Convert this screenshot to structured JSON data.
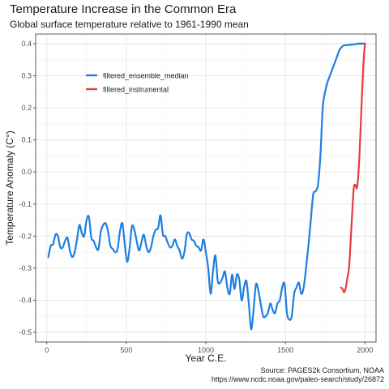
{
  "header": {
    "title": "Temperature Increase in the Common Era",
    "subtitle": "Global surface temperature relative to 1961-1990 mean"
  },
  "caption": {
    "line1": "Source: PAGES2k Consortium, NOAA",
    "line2": "https://www.ncdc.noaa.gov/paleo-search/study/26872"
  },
  "chart_data": {
    "type": "line",
    "xlabel": "Year C.E.",
    "ylabel": "Temperature Anomaly (C°)",
    "xlim": [
      -70,
      2070
    ],
    "ylim": [
      -0.53,
      0.43
    ],
    "xticks": [
      0,
      500,
      1000,
      1500,
      2000
    ],
    "yticks": [
      -0.5,
      -0.4,
      -0.3,
      -0.2,
      -0.1,
      0.0,
      0.1,
      0.2,
      0.3,
      0.4
    ],
    "ytick_labels": [
      "-0.5",
      "-0.4",
      "-0.3",
      "-0.2",
      "-0.1",
      "0.0",
      "0.1",
      "0.2",
      "0.3",
      "0.4"
    ],
    "grid": true,
    "legend_position": "top-left",
    "series": [
      {
        "name": "filtered_ensemble_median",
        "color": "#1e7fe0",
        "x": [
          10,
          25,
          40,
          55,
          70,
          85,
          100,
          115,
          130,
          145,
          160,
          175,
          190,
          205,
          220,
          235,
          250,
          265,
          280,
          295,
          310,
          325,
          340,
          355,
          370,
          385,
          400,
          415,
          430,
          445,
          460,
          475,
          490,
          505,
          520,
          535,
          550,
          565,
          580,
          595,
          610,
          625,
          640,
          655,
          670,
          685,
          700,
          715,
          730,
          745,
          760,
          775,
          790,
          805,
          820,
          835,
          850,
          865,
          880,
          895,
          910,
          925,
          940,
          955,
          970,
          985,
          1000,
          1015,
          1030,
          1045,
          1060,
          1075,
          1090,
          1105,
          1120,
          1135,
          1150,
          1165,
          1180,
          1195,
          1210,
          1225,
          1240,
          1255,
          1270,
          1285,
          1300,
          1315,
          1330,
          1345,
          1360,
          1375,
          1390,
          1405,
          1420,
          1435,
          1450,
          1465,
          1480,
          1495,
          1510,
          1525,
          1540,
          1555,
          1570,
          1585,
          1600,
          1615,
          1630,
          1645,
          1660,
          1675,
          1690,
          1705,
          1720,
          1735,
          1750,
          1765,
          1780,
          1795,
          1810,
          1825,
          1840,
          1855,
          1870,
          1885,
          1900,
          1915,
          1930,
          1945,
          1960,
          1975,
          1990,
          2000
        ],
        "y": [
          -0.265,
          -0.23,
          -0.225,
          -0.195,
          -0.2,
          -0.235,
          -0.235,
          -0.215,
          -0.205,
          -0.245,
          -0.265,
          -0.25,
          -0.21,
          -0.165,
          -0.19,
          -0.2,
          -0.15,
          -0.14,
          -0.205,
          -0.215,
          -0.235,
          -0.24,
          -0.185,
          -0.165,
          -0.16,
          -0.185,
          -0.23,
          -0.24,
          -0.25,
          -0.24,
          -0.185,
          -0.16,
          -0.225,
          -0.28,
          -0.24,
          -0.17,
          -0.18,
          -0.215,
          -0.245,
          -0.22,
          -0.195,
          -0.23,
          -0.25,
          -0.235,
          -0.2,
          -0.18,
          -0.175,
          -0.135,
          -0.195,
          -0.2,
          -0.22,
          -0.235,
          -0.23,
          -0.21,
          -0.23,
          -0.245,
          -0.27,
          -0.25,
          -0.195,
          -0.19,
          -0.21,
          -0.215,
          -0.23,
          -0.235,
          -0.245,
          -0.21,
          -0.25,
          -0.3,
          -0.38,
          -0.31,
          -0.26,
          -0.34,
          -0.345,
          -0.33,
          -0.31,
          -0.36,
          -0.38,
          -0.32,
          -0.365,
          -0.32,
          -0.335,
          -0.4,
          -0.36,
          -0.34,
          -0.41,
          -0.49,
          -0.43,
          -0.35,
          -0.37,
          -0.41,
          -0.45,
          -0.45,
          -0.44,
          -0.41,
          -0.43,
          -0.44,
          -0.41,
          -0.4,
          -0.36,
          -0.35,
          -0.44,
          -0.46,
          -0.45,
          -0.38,
          -0.36,
          -0.345,
          -0.38,
          -0.36,
          -0.3,
          -0.23,
          -0.15,
          -0.07,
          -0.06,
          -0.04,
          0.05,
          0.2,
          0.25,
          0.28,
          0.3,
          0.32,
          0.34,
          0.36,
          0.38,
          0.39,
          0.395,
          0.395,
          0.396,
          0.397,
          0.398,
          0.399,
          0.4,
          0.4,
          0.4,
          0.4
        ]
      },
      {
        "name": "filtered_instrumental",
        "color": "#e83b3b",
        "x": [
          1850,
          1860,
          1870,
          1880,
          1890,
          1900,
          1910,
          1920,
          1930,
          1940,
          1950,
          1960,
          1970,
          1980,
          1990,
          2000
        ],
        "y": [
          -0.36,
          -0.365,
          -0.375,
          -0.36,
          -0.33,
          -0.3,
          -0.22,
          -0.13,
          -0.05,
          -0.04,
          -0.05,
          0.0,
          0.1,
          0.22,
          0.33,
          0.4
        ]
      }
    ]
  }
}
